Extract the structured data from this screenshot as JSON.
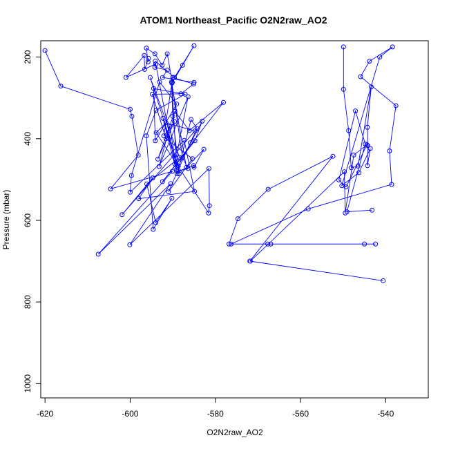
{
  "chart_data": {
    "type": "line",
    "title": "ATOM1 Northeast_Pacific O2N2raw_AO2",
    "xlabel": "O2N2raw_AO2",
    "ylabel": "Pressure (mbar)",
    "xlim": [
      -621,
      -530
    ],
    "ylim": [
      1035,
      160
    ],
    "y_inverted": true,
    "grid": false,
    "legend": "none",
    "marker": "open-circle",
    "color": "#0000ff",
    "x_ticks": [
      -620,
      -600,
      -580,
      -560,
      -540
    ],
    "y_ticks": [
      200,
      400,
      600,
      800,
      1000
    ],
    "series": [
      {
        "values": [
          [
            -620,
            184
          ],
          [
            -616.3,
            271
          ],
          [
            -600,
            328
          ],
          [
            -599.6,
            345
          ],
          [
            -598.1,
            440
          ],
          [
            -604.6,
            523
          ],
          [
            -590.1,
            480
          ],
          [
            -607.5,
            683
          ],
          [
            -590.5,
            510
          ],
          [
            -600.1,
            660
          ],
          [
            -581.5,
            473
          ],
          [
            -581.4,
            564
          ],
          [
            -581.6,
            582
          ],
          [
            -593.9,
            385
          ],
          [
            -591.6,
            361
          ],
          [
            -584.8,
            381
          ],
          [
            -601.9,
            586
          ],
          [
            -594.7,
            496
          ],
          [
            -598,
            547
          ],
          [
            -584.9,
            529
          ],
          [
            -587.3,
            404
          ],
          [
            -600,
            531
          ],
          [
            -599.7,
            490
          ],
          [
            -593.1,
            261
          ],
          [
            -589.1,
            315
          ],
          [
            -594.1,
            405
          ],
          [
            -594.5,
            277
          ],
          [
            -587.1,
            291
          ],
          [
            -593.9,
            330
          ],
          [
            -596.2,
            393
          ],
          [
            -594.6,
            622
          ],
          [
            -590.2,
            546
          ],
          [
            -594,
            606
          ],
          [
            -596.1,
            511
          ],
          [
            -588.4,
            446
          ],
          [
            -595.3,
            250
          ],
          [
            -588.7,
            467
          ],
          [
            -583.1,
            357
          ],
          [
            -584.8,
            405
          ],
          [
            -592.4,
            505
          ],
          [
            -578.1,
            311
          ],
          [
            -586.1,
            380
          ],
          [
            -589.5,
            333
          ],
          [
            -593.5,
            450
          ],
          [
            -589.6,
            358
          ],
          [
            -592.1,
            393
          ],
          [
            -590,
            250
          ],
          [
            -585.1,
            266
          ],
          [
            -588.1,
            290
          ],
          [
            -594.8,
            291
          ],
          [
            -591.6,
            400
          ],
          [
            -585.4,
            449
          ],
          [
            -591,
            530
          ],
          [
            -585.9,
            410
          ],
          [
            -584.3,
            375
          ],
          [
            -585.7,
            353
          ],
          [
            -589,
            486
          ],
          [
            -592.3,
            350
          ],
          [
            -588.5,
            486
          ],
          [
            -590,
            345
          ],
          [
            -590.3,
            261
          ],
          [
            -586.8,
            470
          ],
          [
            -582.7,
            426
          ],
          [
            -585,
            470
          ],
          [
            -585.1,
            466
          ],
          [
            -588.8,
            480
          ],
          [
            -586.4,
            473
          ],
          [
            -587.7,
            447
          ],
          [
            -590.2,
            264
          ],
          [
            -589.1,
            475
          ],
          [
            -590.7,
            370
          ],
          [
            -593.2,
            468
          ],
          [
            -586.4,
            297
          ],
          [
            -589.5,
            462
          ],
          [
            -594,
            217
          ],
          [
            -601,
            250
          ],
          [
            -596.7,
            196
          ],
          [
            -596.6,
            230
          ],
          [
            -595.7,
            203
          ],
          [
            -595.8,
            212
          ],
          [
            -596.2,
            178
          ],
          [
            -594.2,
            192
          ],
          [
            -592.5,
            220
          ],
          [
            -591.3,
            192
          ],
          [
            -590.1,
            262
          ],
          [
            -587.7,
            220
          ],
          [
            -585,
            172
          ],
          [
            -589.6,
            250
          ],
          [
            -594.1,
            210
          ],
          [
            -594.2,
            225
          ],
          [
            -591.3,
            232
          ],
          [
            -592.4,
            250
          ],
          [
            -585,
            262
          ]
        ]
      },
      {
        "values": [
          [
            -549.9,
            175
          ],
          [
            -549.9,
            279
          ],
          [
            -548.7,
            380
          ],
          [
            -548.1,
            471
          ],
          [
            -546.5,
            467
          ],
          [
            -543.4,
            273
          ],
          [
            -544.3,
            372
          ],
          [
            -544.2,
            417
          ],
          [
            -544.3,
            466
          ],
          [
            -543.6,
            424
          ],
          [
            -546.3,
            483
          ],
          [
            -550.3,
            515
          ],
          [
            -541.4,
            200
          ],
          [
            -538.4,
            175
          ],
          [
            -543.8,
            210
          ],
          [
            -545.9,
            248
          ],
          [
            -537.6,
            319
          ],
          [
            -539.1,
            430
          ],
          [
            -538.6,
            512
          ],
          [
            -558.2,
            572
          ],
          [
            -576.3,
            658
          ],
          [
            -567,
            658
          ],
          [
            -567.7,
            658
          ],
          [
            -545,
            658
          ],
          [
            -542.4,
            658
          ],
          [
            -576.8,
            658
          ],
          [
            -574.7,
            596
          ],
          [
            -567.6,
            524
          ],
          [
            -552.4,
            443
          ],
          [
            -571.9,
            700
          ],
          [
            -540.6,
            748
          ],
          [
            -571.8,
            700
          ],
          [
            -549.7,
            481
          ],
          [
            -549.5,
            582
          ],
          [
            -547.5,
            440
          ],
          [
            -544.4,
            415
          ],
          [
            -549.3,
            518
          ],
          [
            -551,
            501
          ],
          [
            -547.1,
            332
          ],
          [
            -544.8,
            413
          ],
          [
            -549.1,
            579
          ],
          [
            -543.2,
            575
          ]
        ]
      }
    ]
  }
}
